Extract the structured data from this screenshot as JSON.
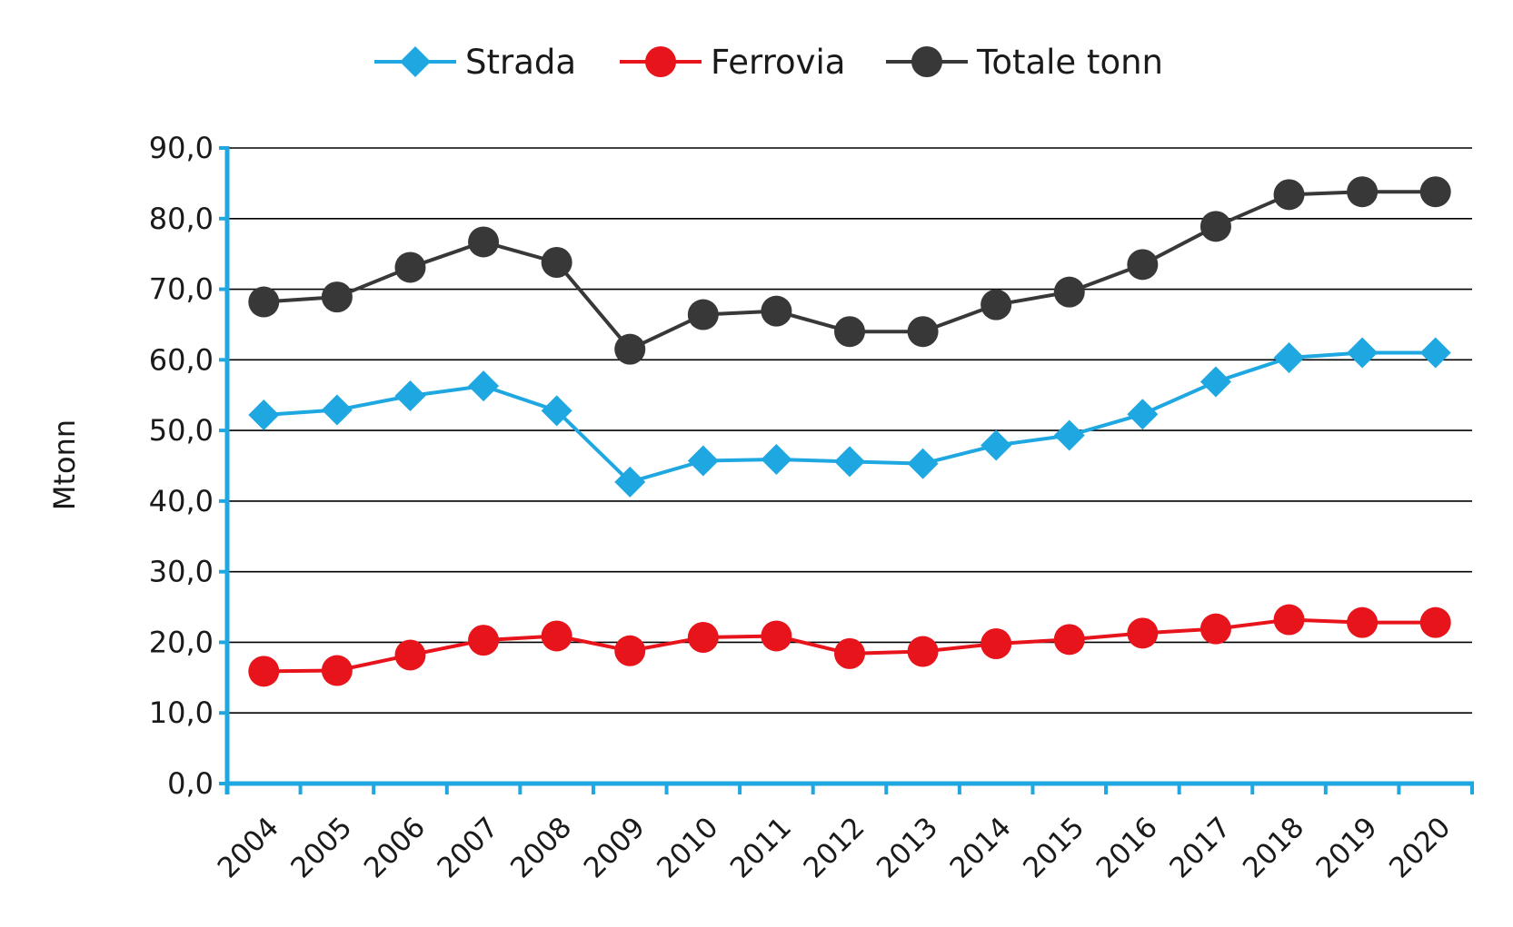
{
  "chart_data": {
    "type": "line",
    "title": "",
    "xlabel": "",
    "ylabel": "Mtonn",
    "ylim": [
      0,
      90
    ],
    "yticks": [
      "0,0",
      "10,0",
      "20,0",
      "30,0",
      "40,0",
      "50,0",
      "60,0",
      "70,0",
      "80,0",
      "90,0"
    ],
    "grid": true,
    "legend_position": "top-center",
    "categories": [
      "2004",
      "2005",
      "2006",
      "2007",
      "2008",
      "2009",
      "2010",
      "2011",
      "2012",
      "2013",
      "2014",
      "2015",
      "2016",
      "2017",
      "2018",
      "2019",
      "2020"
    ],
    "series": [
      {
        "name": "Strada",
        "color": "#1ea7e1",
        "marker": "diamond",
        "values": [
          52.2,
          52.9,
          54.9,
          56.3,
          52.8,
          42.7,
          45.7,
          45.9,
          45.6,
          45.3,
          47.9,
          49.3,
          52.3,
          56.9,
          60.3,
          61.0,
          61.0
        ]
      },
      {
        "name": "Ferrovia",
        "color": "#e8141b",
        "marker": "circle",
        "values": [
          15.9,
          16.0,
          18.2,
          20.3,
          20.9,
          18.8,
          20.7,
          20.9,
          18.4,
          18.7,
          19.8,
          20.4,
          21.3,
          21.9,
          23.2,
          22.8,
          22.8
        ]
      },
      {
        "name": "Totale tonn",
        "color": "#383838",
        "marker": "circle",
        "values": [
          68.2,
          68.9,
          73.1,
          76.7,
          73.8,
          61.5,
          66.4,
          66.9,
          64.0,
          64.0,
          67.8,
          69.6,
          73.5,
          78.9,
          83.4,
          83.8,
          83.8
        ]
      }
    ]
  }
}
